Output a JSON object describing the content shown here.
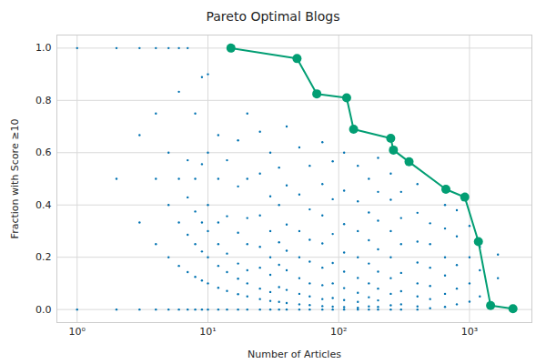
{
  "chart_data": {
    "type": "scatter",
    "title": "Pareto Optimal Blogs",
    "x_label": "Number of Articles",
    "y_label": "Fraction with Score ≥10",
    "log": "x",
    "grid": true,
    "xlim": [
      0.7,
      3000
    ],
    "xticks": [
      {
        "value": 1,
        "label": "10⁰"
      },
      {
        "value": 10,
        "label": "10¹"
      },
      {
        "value": 100,
        "label": "10²"
      },
      {
        "value": 1000,
        "label": "10³"
      }
    ],
    "ylim": [
      -0.05,
      1.05
    ],
    "yticks": [
      {
        "value": 0,
        "label": "0.0"
      },
      {
        "value": 0.2,
        "label": "0.2"
      },
      {
        "value": 0.4,
        "label": "0.4"
      },
      {
        "value": 0.6,
        "label": "0.6"
      },
      {
        "value": 0.8,
        "label": "0.8"
      },
      {
        "value": 1,
        "label": "1.0"
      }
    ],
    "series": [
      {
        "type": "scatter",
        "color": "#0173b2",
        "marker": "point",
        "x": [
          1,
          1,
          2,
          2,
          2,
          3,
          3,
          3,
          3,
          4,
          4,
          4,
          4,
          4,
          5,
          5,
          5,
          5,
          5,
          6,
          6,
          6,
          6,
          6,
          6,
          7,
          7,
          7,
          7,
          7,
          7,
          8,
          8,
          8,
          8,
          8,
          8,
          9,
          9,
          9,
          9,
          9,
          9,
          10,
          10,
          10,
          10,
          10,
          10,
          10,
          12,
          12,
          12,
          12,
          12,
          12,
          12,
          14,
          14,
          14,
          14,
          14,
          14,
          17,
          17,
          17,
          17,
          17,
          17,
          17,
          20,
          20,
          20,
          20,
          20,
          20,
          20,
          20,
          25,
          25,
          25,
          25,
          25,
          25,
          25,
          25,
          30,
          30,
          30,
          30,
          30,
          30,
          30,
          30,
          35,
          35,
          35,
          35,
          35,
          35,
          35,
          40,
          40,
          40,
          40,
          40,
          40,
          40,
          40,
          50,
          50,
          50,
          50,
          50,
          50,
          50,
          50,
          60,
          60,
          60,
          60,
          60,
          60,
          60,
          60,
          75,
          75,
          75,
          75,
          75,
          75,
          75,
          75,
          75,
          90,
          90,
          90,
          90,
          90,
          90,
          90,
          90,
          110,
          110,
          110,
          110,
          110,
          110,
          110,
          110,
          110,
          140,
          140,
          140,
          140,
          140,
          140,
          140,
          140,
          140,
          170,
          170,
          170,
          170,
          170,
          170,
          170,
          170,
          200,
          200,
          200,
          200,
          200,
          200,
          200,
          200,
          200,
          250,
          250,
          250,
          250,
          250,
          250,
          250,
          250,
          300,
          300,
          300,
          300,
          300,
          300,
          300,
          400,
          400,
          400,
          400,
          400,
          400,
          400,
          400,
          500,
          500,
          500,
          500,
          500,
          500,
          650,
          650,
          650,
          650,
          650,
          650,
          800,
          800,
          800,
          800,
          800,
          1000,
          1000,
          1000,
          1000,
          1200,
          1200,
          1200,
          1400,
          1650,
          1650,
          2150
        ],
        "values": [
          0,
          1,
          0,
          0.5,
          1,
          0,
          0.333,
          0.667,
          1,
          0,
          0.25,
          0.5,
          0.75,
          1,
          0,
          0.2,
          0.4,
          0.6,
          1,
          0,
          0.167,
          0.333,
          0.5,
          0.833,
          1,
          0,
          0.143,
          0.286,
          0.429,
          0.571,
          1,
          0,
          0.125,
          0.25,
          0.375,
          0.5,
          0.75,
          0,
          0.111,
          0.222,
          0.333,
          0.556,
          0.889,
          0,
          0.1,
          0.2,
          0.3,
          0.4,
          0.6,
          0.9,
          0,
          0.083,
          0.167,
          0.25,
          0.333,
          0.5,
          0.667,
          0,
          0.071,
          0.143,
          0.214,
          0.357,
          0.571,
          0,
          0.059,
          0.118,
          0.176,
          0.294,
          0.471,
          0.647,
          0,
          0.05,
          0.1,
          0.15,
          0.25,
          0.35,
          0.5,
          0.75,
          0,
          0.04,
          0.08,
          0.16,
          0.24,
          0.36,
          0.52,
          0.68,
          0,
          0.033,
          0.067,
          0.133,
          0.2,
          0.3,
          0.433,
          0.6,
          0,
          0.029,
          0.086,
          0.171,
          0.257,
          0.4,
          0.543,
          0,
          0.025,
          0.075,
          0.15,
          0.225,
          0.325,
          0.475,
          0.7,
          0,
          0.02,
          0.06,
          0.12,
          0.2,
          0.3,
          0.44,
          0.62,
          0,
          0.017,
          0.05,
          0.1,
          0.183,
          0.267,
          0.383,
          0.55,
          0,
          0.013,
          0.04,
          0.093,
          0.16,
          0.253,
          0.36,
          0.48,
          0.64,
          0,
          0.011,
          0.044,
          0.1,
          0.178,
          0.289,
          0.422,
          0.567,
          0,
          0.009,
          0.036,
          0.082,
          0.145,
          0.218,
          0.327,
          0.455,
          0.6,
          0,
          0.007,
          0.029,
          0.064,
          0.121,
          0.2,
          0.3,
          0.414,
          0.55,
          0,
          0.012,
          0.047,
          0.1,
          0.176,
          0.265,
          0.371,
          0.5,
          0,
          0.01,
          0.035,
          0.08,
          0.145,
          0.23,
          0.34,
          0.45,
          0.58,
          0,
          0.016,
          0.06,
          0.12,
          0.2,
          0.3,
          0.42,
          0.52,
          0,
          0.02,
          0.07,
          0.14,
          0.25,
          0.35,
          0.45,
          0,
          0.012,
          0.05,
          0.1,
          0.18,
          0.26,
          0.37,
          0.48,
          0.005,
          0.04,
          0.09,
          0.16,
          0.25,
          0.33,
          0.01,
          0.06,
          0.13,
          0.2,
          0.31,
          0.4,
          0.02,
          0.08,
          0.17,
          0.28,
          0.38,
          0.03,
          0.1,
          0.2,
          0.32,
          0.05,
          0.15,
          0.24,
          0.01,
          0.12,
          0.21,
          0.003
        ]
      },
      {
        "type": "line",
        "color": "#029e73",
        "marker": "circle",
        "x": [
          15,
          48,
          68,
          115,
          130,
          250,
          262,
          345,
          660,
          920,
          1170,
          1450,
          2150
        ],
        "values": [
          1.0,
          0.96,
          0.825,
          0.81,
          0.69,
          0.655,
          0.61,
          0.565,
          0.46,
          0.43,
          0.26,
          0.015,
          0.003
        ]
      }
    ]
  }
}
